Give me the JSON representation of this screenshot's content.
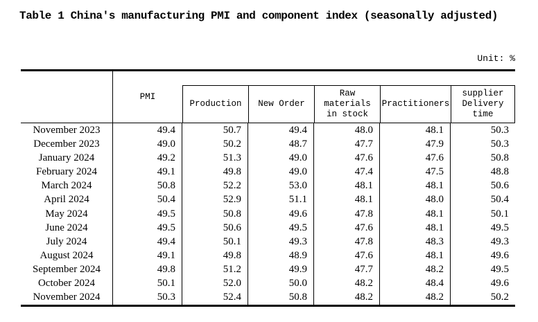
{
  "title": "Table 1 China's manufacturing PMI and component index (seasonally adjusted)",
  "unit_label": "Unit: %",
  "table": {
    "header": {
      "pmi": "PMI",
      "production": "Production",
      "new_order": "New Order",
      "raw_materials": [
        "Raw",
        "materials",
        "in stock"
      ],
      "practitioners": "Practitioners",
      "supplier_delivery": [
        "supplier",
        "Delivery",
        "time"
      ]
    },
    "rows": [
      {
        "month": "November 2023",
        "pmi": "49.4",
        "production": "50.7",
        "new_order": "49.4",
        "raw_materials": "48.0",
        "practitioners": "48.1",
        "supplier_delivery": "50.3"
      },
      {
        "month": "December 2023",
        "pmi": "49.0",
        "production": "50.2",
        "new_order": "48.7",
        "raw_materials": "47.7",
        "practitioners": "47.9",
        "supplier_delivery": "50.3"
      },
      {
        "month": "January 2024",
        "pmi": "49.2",
        "production": "51.3",
        "new_order": "49.0",
        "raw_materials": "47.6",
        "practitioners": "47.6",
        "supplier_delivery": "50.8"
      },
      {
        "month": "February 2024",
        "pmi": "49.1",
        "production": "49.8",
        "new_order": "49.0",
        "raw_materials": "47.4",
        "practitioners": "47.5",
        "supplier_delivery": "48.8"
      },
      {
        "month": "March 2024",
        "pmi": "50.8",
        "production": "52.2",
        "new_order": "53.0",
        "raw_materials": "48.1",
        "practitioners": "48.1",
        "supplier_delivery": "50.6"
      },
      {
        "month": "April 2024",
        "pmi": "50.4",
        "production": "52.9",
        "new_order": "51.1",
        "raw_materials": "48.1",
        "practitioners": "48.0",
        "supplier_delivery": "50.4"
      },
      {
        "month": "May 2024",
        "pmi": "49.5",
        "production": "50.8",
        "new_order": "49.6",
        "raw_materials": "47.8",
        "practitioners": "48.1",
        "supplier_delivery": "50.1"
      },
      {
        "month": "June 2024",
        "pmi": "49.5",
        "production": "50.6",
        "new_order": "49.5",
        "raw_materials": "47.6",
        "practitioners": "48.1",
        "supplier_delivery": "49.5"
      },
      {
        "month": "July 2024",
        "pmi": "49.4",
        "production": "50.1",
        "new_order": "49.3",
        "raw_materials": "47.8",
        "practitioners": "48.3",
        "supplier_delivery": "49.3"
      },
      {
        "month": "August 2024",
        "pmi": "49.1",
        "production": "49.8",
        "new_order": "48.9",
        "raw_materials": "47.6",
        "practitioners": "48.1",
        "supplier_delivery": "49.6"
      },
      {
        "month": "September 2024",
        "pmi": "49.8",
        "production": "51.2",
        "new_order": "49.9",
        "raw_materials": "47.7",
        "practitioners": "48.2",
        "supplier_delivery": "49.5"
      },
      {
        "month": "October 2024",
        "pmi": "50.1",
        "production": "52.0",
        "new_order": "50.0",
        "raw_materials": "48.2",
        "practitioners": "48.4",
        "supplier_delivery": "49.6"
      },
      {
        "month": "November 2024",
        "pmi": "50.3",
        "production": "52.4",
        "new_order": "50.8",
        "raw_materials": "48.2",
        "practitioners": "48.2",
        "supplier_delivery": "50.2"
      }
    ]
  }
}
